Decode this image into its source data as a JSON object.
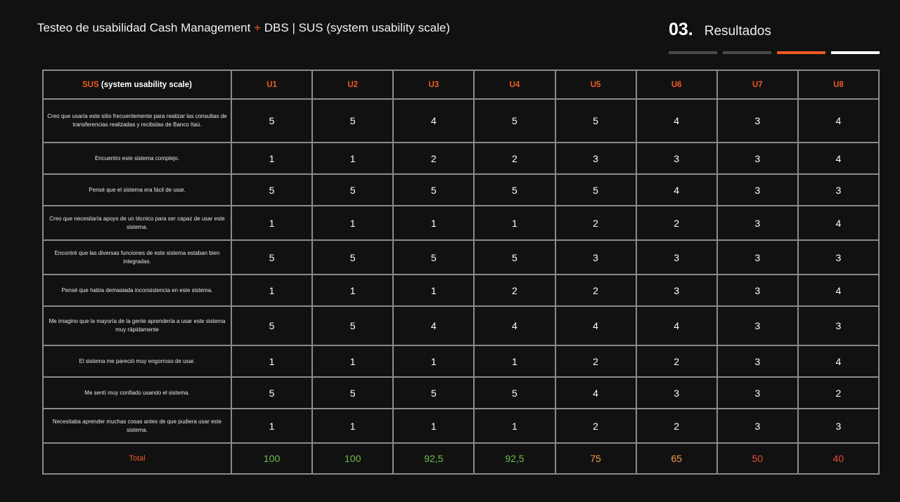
{
  "header": {
    "title_part1": "Testeo de usabilidad Cash Management",
    "title_plus": "+",
    "title_part2": "DBS | SUS (system usability scale)",
    "section_number": "03.",
    "section_name": "Resultados"
  },
  "progress": {
    "segments": [
      {
        "color": "#4a4a4a"
      },
      {
        "color": "#4a4a4a"
      },
      {
        "color": "#ee5a24"
      },
      {
        "color": "#ffffff"
      }
    ]
  },
  "table": {
    "header_accent": "SUS",
    "header_rest": "(system usability scale)",
    "columns": [
      "U1",
      "U2",
      "U3",
      "U4",
      "U5",
      "U6",
      "U7",
      "U8"
    ],
    "rows": [
      {
        "question": "Creo que usaría este sitio frecuentemente para realizar las consultas de transferencias realizadas y recibidas de Banco Itaú.",
        "values": [
          "5",
          "5",
          "4",
          "5",
          "5",
          "4",
          "3",
          "4"
        ]
      },
      {
        "question": "Encuentro este sistema complejo.",
        "values": [
          "1",
          "1",
          "2",
          "2",
          "3",
          "3",
          "3",
          "4"
        ]
      },
      {
        "question": "Pensé que el sistema era fácil de usar.",
        "values": [
          "5",
          "5",
          "5",
          "5",
          "5",
          "4",
          "3",
          "3"
        ]
      },
      {
        "question": "Creo que necesitaría apoyo de un técnico para ser capaz de usar este sistema.",
        "values": [
          "1",
          "1",
          "1",
          "1",
          "2",
          "2",
          "3",
          "4"
        ]
      },
      {
        "question": "Encontré que las diversas funciones de este sistema estaban bien integradas.",
        "values": [
          "5",
          "5",
          "5",
          "5",
          "3",
          "3",
          "3",
          "3"
        ]
      },
      {
        "question": "Pensé que había demasiada inconsistencia en este sistema.",
        "values": [
          "1",
          "1",
          "1",
          "2",
          "2",
          "3",
          "3",
          "4"
        ]
      },
      {
        "question": "Me imagino que la mayoría de la gente aprendería a usar este sistema muy rápidamente",
        "values": [
          "5",
          "5",
          "4",
          "4",
          "4",
          "4",
          "3",
          "3"
        ]
      },
      {
        "question": "El sistema me pareció muy engorroso de usar.",
        "values": [
          "1",
          "1",
          "1",
          "1",
          "2",
          "2",
          "3",
          "4"
        ]
      },
      {
        "question": "Me sentí muy confiado usando el sistema.",
        "values": [
          "5",
          "5",
          "5",
          "5",
          "4",
          "3",
          "3",
          "2"
        ]
      },
      {
        "question": "Necesitaba aprender muchas cosas antes de que pudiera usar este sistema.",
        "values": [
          "1",
          "1",
          "1",
          "1",
          "2",
          "2",
          "3",
          "3"
        ]
      }
    ],
    "total_label": "Total",
    "totals": [
      {
        "value": "100",
        "color": "#6cbf4a"
      },
      {
        "value": "100",
        "color": "#6cbf4a"
      },
      {
        "value": "92,5",
        "color": "#6cbf4a"
      },
      {
        "value": "92,5",
        "color": "#6cbf4a"
      },
      {
        "value": "75",
        "color": "#f0a045"
      },
      {
        "value": "65",
        "color": "#f0a045"
      },
      {
        "value": "50",
        "color": "#e84a3a"
      },
      {
        "value": "40",
        "color": "#e84a3a"
      }
    ]
  }
}
